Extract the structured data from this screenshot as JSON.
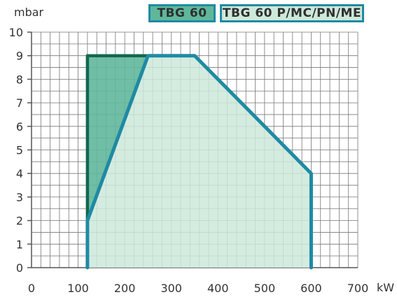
{
  "colors": {
    "grid": "#777777",
    "fill_small": "#5fb79b",
    "fill_large": "#cde9da",
    "outline_teal": "#1f8aa3",
    "outline_dark": "#14664f"
  },
  "chart_data": {
    "type": "area",
    "title": "",
    "xlabel": "kW",
    "ylabel": "mbar",
    "xlim": [
      0,
      700
    ],
    "ylim": [
      0,
      10
    ],
    "x_ticks": [
      0,
      100,
      200,
      300,
      400,
      500,
      600,
      700
    ],
    "y_ticks": [
      0,
      1,
      2,
      3,
      4,
      5,
      6,
      7,
      8,
      9,
      10
    ],
    "grid": true,
    "legend_position": "top",
    "series": [
      {
        "name": "TBG 60",
        "color": "#5fb79b",
        "points": [
          [
            120,
            2
          ],
          [
            120,
            9
          ],
          [
            250,
            9
          ]
        ]
      },
      {
        "name": "TBG 60 P/MC/PN/ME",
        "color": "#cde9da",
        "points": [
          [
            120,
            0
          ],
          [
            120,
            2
          ],
          [
            250,
            9
          ],
          [
            350,
            9
          ],
          [
            600,
            4
          ],
          [
            600,
            0
          ]
        ]
      }
    ]
  }
}
